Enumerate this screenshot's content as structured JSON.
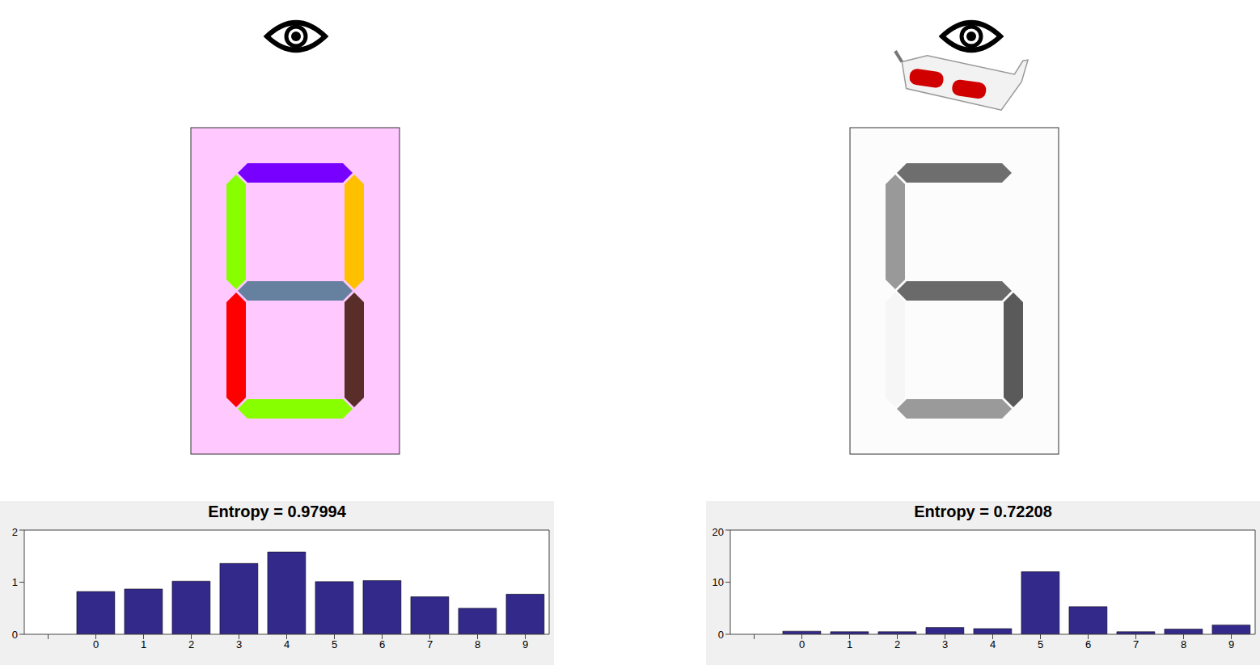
{
  "chart_data": [
    {
      "type": "bar",
      "title": "Entropy = 0.97994",
      "categories": [
        null,
        "0",
        "1",
        "2",
        "3",
        "4",
        "5",
        "6",
        "7",
        "8",
        "9"
      ],
      "values": [
        0,
        0.82,
        0.87,
        1.02,
        1.36,
        1.58,
        1.01,
        1.03,
        0.72,
        0.5,
        0.77
      ],
      "color": "#33298a",
      "ylim": [
        0,
        2
      ],
      "yticks": [
        0,
        1,
        2
      ]
    },
    {
      "type": "bar",
      "title": "Entropy = 0.72208",
      "categories": [
        null,
        "0",
        "1",
        "2",
        "3",
        "4",
        "5",
        "6",
        "7",
        "8",
        "9"
      ],
      "values": [
        0,
        0.6,
        0.5,
        0.5,
        1.3,
        1.1,
        12,
        5.3,
        0.5,
        1.0,
        1.8
      ],
      "color": "#33298a",
      "ylim": [
        0,
        20
      ],
      "yticks": [
        0,
        10,
        20
      ]
    }
  ]
}
